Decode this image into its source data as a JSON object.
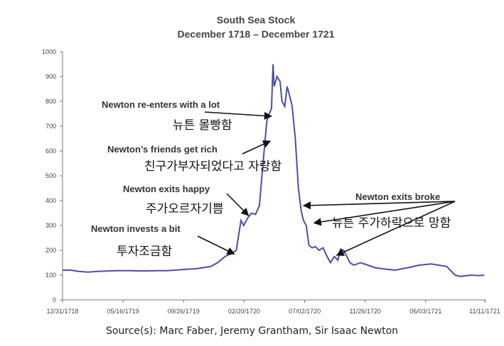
{
  "chart_data": {
    "type": "line",
    "title": "South Sea Stock",
    "subtitle": "December 1718 – December 1721",
    "ylim": [
      0,
      1000
    ],
    "yticks": [
      0,
      100,
      200,
      300,
      400,
      500,
      600,
      700,
      800,
      900,
      1000
    ],
    "xticks": [
      "12/31/1718",
      "05/16/1719",
      "09/26/1719",
      "02/20/1720",
      "07/02/1720",
      "11/26/1720",
      "06/03/1721",
      "11/11/1721"
    ],
    "grid": false,
    "line_color": "#4a4fa8",
    "series": [
      {
        "x": [
          "1718-12-31",
          "1719-01-20",
          "1719-02-10",
          "1719-03-05",
          "1719-04-01",
          "1719-05-16",
          "1719-06-20",
          "1719-07-25",
          "1719-09-01",
          "1719-09-26",
          "1719-11-01",
          "1719-12-10",
          "1720-01-15",
          "1720-02-01",
          "1720-02-20",
          "1720-03-05",
          "1720-03-20",
          "1720-04-01",
          "1720-04-08",
          "1720-04-18",
          "1720-04-28",
          "1720-05-08",
          "1720-05-18",
          "1720-05-28",
          "1720-06-06",
          "1720-06-12",
          "1720-06-18",
          "1720-06-22",
          "1720-06-25",
          "1720-07-02",
          "1720-07-10",
          "1720-07-15",
          "1720-07-22",
          "1720-07-28",
          "1720-08-04",
          "1720-08-10",
          "1720-08-18",
          "1720-08-26",
          "1720-09-02",
          "1720-09-08",
          "1720-09-15",
          "1720-09-22",
          "1720-09-30",
          "1720-10-08",
          "1720-10-18",
          "1720-10-28",
          "1720-11-06",
          "1720-11-16",
          "1720-11-26",
          "1720-12-05",
          "1720-12-12",
          "1720-12-20",
          "1721-01-05",
          "1721-01-15",
          "1721-02-01",
          "1721-02-20",
          "1721-03-10",
          "1721-04-01",
          "1721-05-01",
          "1721-06-03",
          "1721-07-01",
          "1721-08-01",
          "1721-08-20",
          "1721-09-10",
          "1721-10-01",
          "1721-10-15",
          "1721-11-11",
          "1721-12-01",
          "1721-12-15"
        ],
        "y": [
          120,
          120,
          115,
          112,
          115,
          118,
          118,
          117,
          118,
          118,
          122,
          126,
          135,
          150,
          175,
          185,
          200,
          320,
          300,
          330,
          350,
          345,
          380,
          560,
          720,
          750,
          770,
          950,
          860,
          900,
          880,
          800,
          780,
          860,
          820,
          780,
          650,
          450,
          360,
          320,
          300,
          220,
          210,
          215,
          200,
          210,
          180,
          150,
          175,
          160,
          205,
          200,
          150,
          140,
          150,
          140,
          130,
          125,
          120,
          130,
          140,
          145,
          140,
          135,
          100,
          95,
          100,
          98,
          100
        ]
      }
    ],
    "annotations": [
      {
        "label": "Newton re-enters with a lot",
        "translation": "뉴튼 몰빵함",
        "point": [
          "1720-06-18",
          740
        ]
      },
      {
        "label": "Newton’s friends get rich",
        "translation": "친구가부자되었다고 자랑함",
        "point": [
          "1720-06-15",
          640
        ]
      },
      {
        "label": "Newton exits happy",
        "translation": "주가오르자기쁨",
        "point": [
          "1720-04-20",
          340
        ]
      },
      {
        "label": "Newton invests a bit",
        "translation": "투자조금함",
        "point": [
          "1720-03-15",
          185
        ]
      },
      {
        "label": "Newton exits broke",
        "translation": "뉴튼 주가하락으로 망함",
        "points": [
          [
            "1720-09-08",
            380
          ],
          [
            "1720-10-05",
            310
          ],
          [
            "1720-12-02",
            180
          ]
        ]
      }
    ],
    "source": "Source(s): Marc Faber, Jeremy Grantham, Sir Isaac Newton"
  }
}
